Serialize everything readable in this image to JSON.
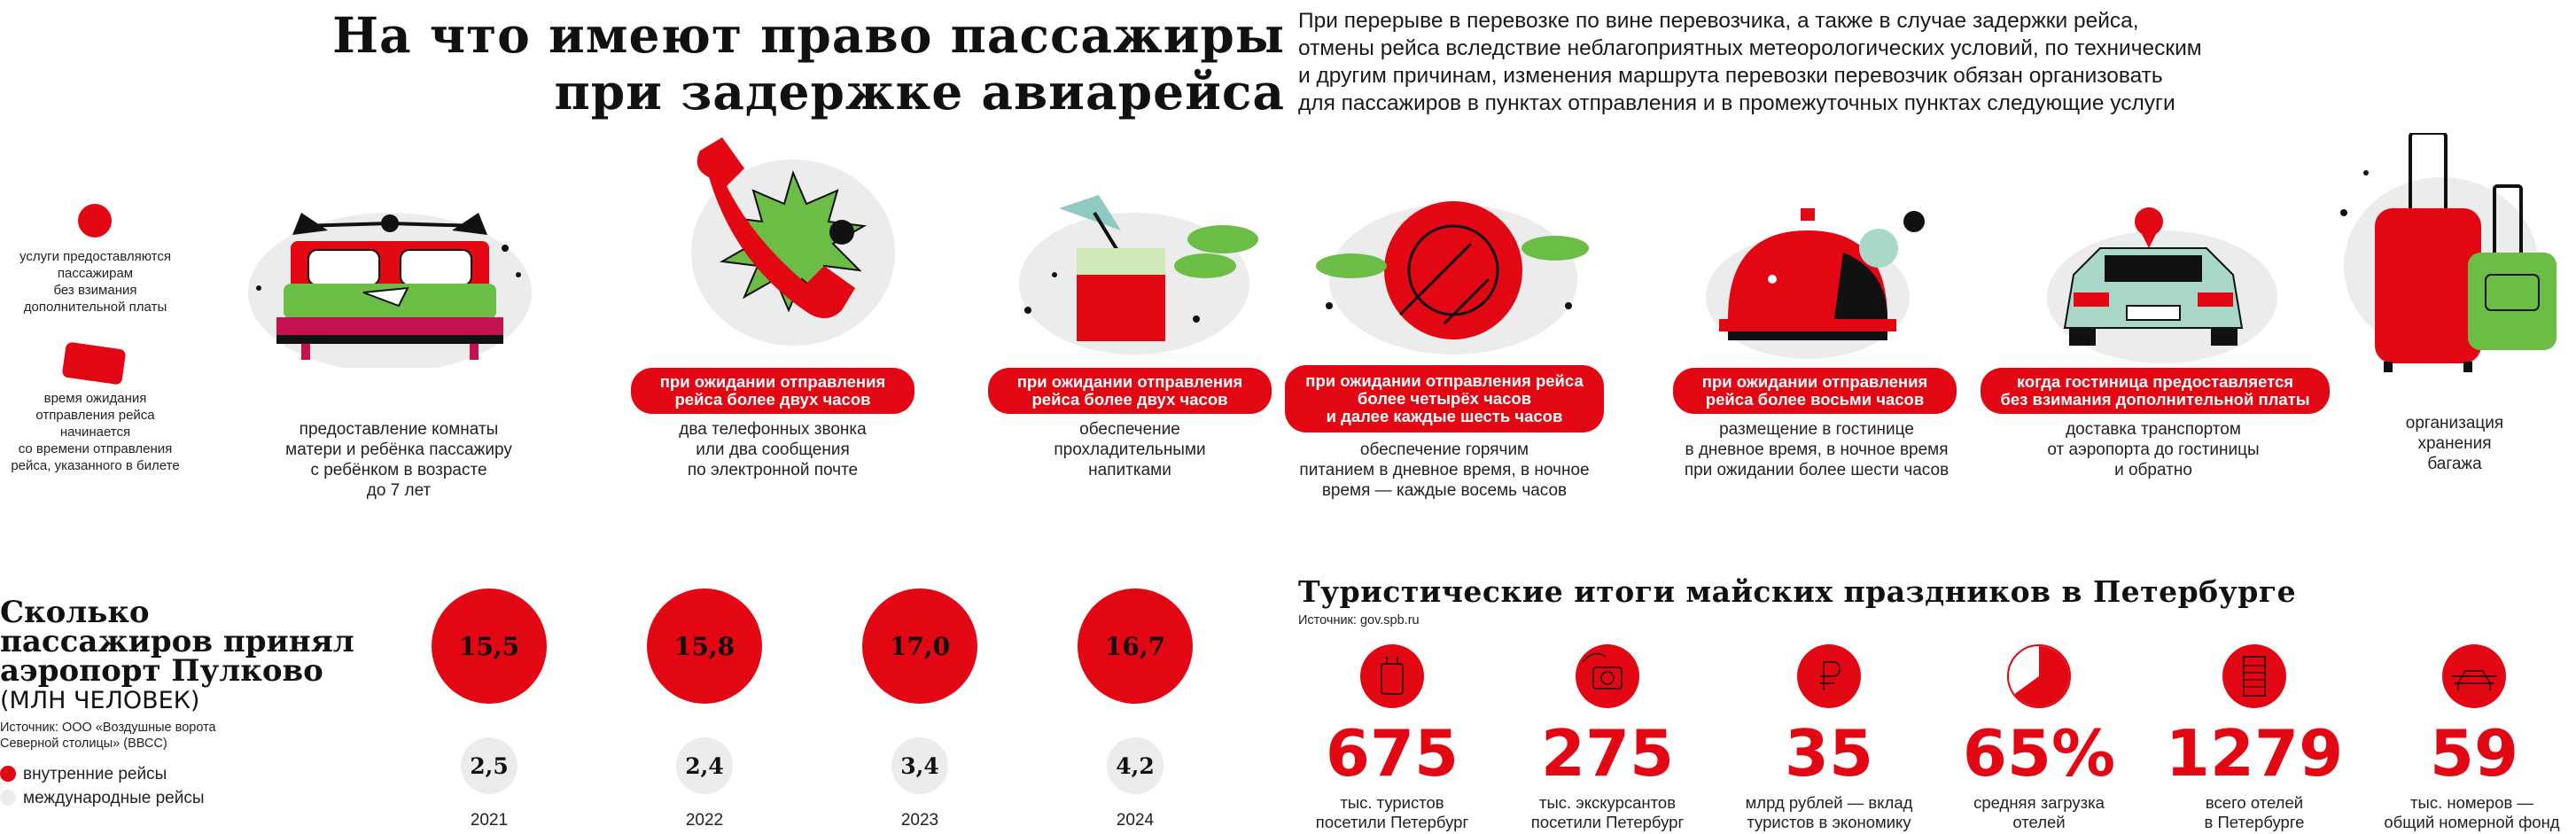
{
  "header": {
    "title_line1": "На что имеют право пассажиры",
    "title_line2": "при задержке авиарейса",
    "intro_lines": [
      "При перерыве в перевозке по вине перевозчика, а также в случае задержки рейса,",
      "отмены рейса вследствие неблагоприятных метеорологических условий, по техническим",
      "и другим причинам, изменения маршрута перевозки перевозчик обязан организовать",
      "для пассажиров в пунктах отправления и в промежуточных пунктах следующие услуги"
    ]
  },
  "legend": {
    "free_lines": [
      "услуги предоставляются",
      "пассажирам",
      "без взимания",
      "дополнительной платы"
    ],
    "wait_lines": [
      "время ожидания",
      "отправления рейса",
      "начинается",
      "со времени отправления",
      "рейса, указанного в билете"
    ]
  },
  "services": [
    {
      "icon": "bed-icon",
      "pill_lines": [],
      "caption_lines": [
        "предоставление комнаты",
        "матери и ребёнка пассажиру",
        "с ребёнком в возрасте",
        "до 7 лет"
      ]
    },
    {
      "icon": "phone-icon",
      "pill_lines": [
        "при ожидании отправления",
        "рейса более двух часов"
      ],
      "caption_lines": [
        "два телефонных звонка",
        "или два сообщения",
        "по электронной почте"
      ]
    },
    {
      "icon": "drink-icon",
      "pill_lines": [
        "при ожидании отправления",
        "рейса более двух часов"
      ],
      "caption_lines": [
        "обеспечение",
        "прохладительными",
        "напитками"
      ]
    },
    {
      "icon": "plate-icon",
      "pill_lines": [
        "при ожидании отправления рейса",
        "более четырёх часов",
        "и далее каждые шесть часов"
      ],
      "caption_lines": [
        "обеспечение горячим",
        "питанием в дневное время, в ночное",
        "время — каждые восемь часов"
      ]
    },
    {
      "icon": "hotel-bell-icon",
      "pill_lines": [
        "при ожидании отправления",
        "рейса более восьми часов"
      ],
      "caption_lines": [
        "размещение в гостинице",
        "в дневное время, в ночное время",
        "при ожидании более шести часов"
      ]
    },
    {
      "icon": "car-icon",
      "pill_lines": [
        "когда гостиница предоставляется",
        "без взимания дополнительной платы"
      ],
      "caption_lines": [
        "доставка транспортом",
        "от аэропорта до гостиницы",
        "и обратно"
      ]
    },
    {
      "icon": "luggage-icon",
      "pill_lines": [],
      "caption_lines": [
        "организация",
        "хранения",
        "багажа"
      ]
    }
  ],
  "pulkovo": {
    "title_lines": [
      "Сколько",
      "пассажиров принял",
      "аэропорт Пулково"
    ],
    "unit": "(МЛН ЧЕЛОВЕК)",
    "source_lines": [
      "Источник: ООО «Воздушные ворота",
      "Северной столицы» (ВВСС)"
    ],
    "legend_domestic": "внутренние рейсы",
    "legend_international": "международные рейсы",
    "colors": {
      "domestic": "#e30613",
      "international": "#ececec"
    }
  },
  "chart_data": {
    "type": "bar",
    "categories": [
      "2021",
      "2022",
      "2023",
      "2024"
    ],
    "series": [
      {
        "name": "внутренние рейсы",
        "values": [
          "15,5",
          "15,8",
          "17,0",
          "16,7"
        ]
      },
      {
        "name": "международные рейсы",
        "values": [
          "2,5",
          "2,4",
          "3,4",
          "4,2"
        ]
      }
    ]
  },
  "tourism": {
    "title": "Туристические итоги майских праздников в Петербурге",
    "source": "Источник: gov.spb.ru",
    "stats": [
      {
        "icon": "tourist-suitcase-icon",
        "value": "675",
        "caption_lines": [
          "тыс. туристов",
          "посетили Петербург"
        ]
      },
      {
        "icon": "camera-icon",
        "value": "275",
        "caption_lines": [
          "тыс. экскурсантов",
          "посетили Петербург"
        ]
      },
      {
        "icon": "ruble-icon",
        "value": "35",
        "caption_lines": [
          "млрд рублей — вклад",
          "туристов в экономику"
        ]
      },
      {
        "icon": "pie-icon",
        "value": "65%",
        "caption_lines": [
          "средняя загрузка",
          "отелей"
        ]
      },
      {
        "icon": "hotel-building-icon",
        "value": "1279",
        "caption_lines": [
          "всего отелей",
          "в Петербурге"
        ]
      },
      {
        "icon": "bed-small-icon",
        "value": "59",
        "caption_lines": [
          "тыс. номеров —",
          "общий номерной фонд"
        ]
      }
    ]
  }
}
